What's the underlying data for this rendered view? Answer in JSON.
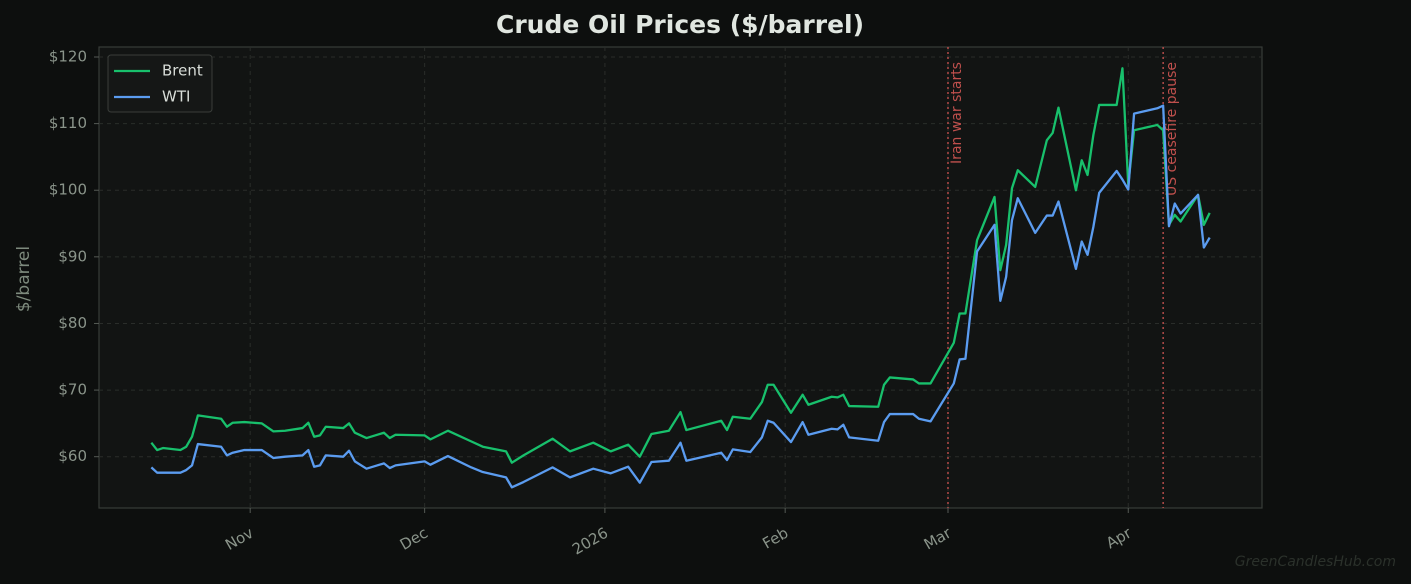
{
  "chart_data": {
    "type": "line",
    "title": "Crude Oil Prices ($/barrel)",
    "y_label": "$/barrel",
    "watermark": "GreenCandlesHub.com",
    "grid": true,
    "legend": "upper left",
    "x": [
      "2025-10-15",
      "2025-10-16",
      "2025-10-17",
      "2025-10-20",
      "2025-10-21",
      "2025-10-22",
      "2025-10-23",
      "2025-10-27",
      "2025-10-28",
      "2025-10-29",
      "2025-10-31",
      "2025-11-03",
      "2025-11-05",
      "2025-11-07",
      "2025-11-10",
      "2025-11-11",
      "2025-11-12",
      "2025-11-13",
      "2025-11-14",
      "2025-11-17",
      "2025-11-18",
      "2025-11-19",
      "2025-11-21",
      "2025-11-24",
      "2025-11-25",
      "2025-11-26",
      "2025-12-01",
      "2025-12-02",
      "2025-12-05",
      "2025-12-09",
      "2025-12-11",
      "2025-12-15",
      "2025-12-16",
      "2025-12-18",
      "2025-12-23",
      "2025-12-26",
      "2025-12-30",
      "2026-01-02",
      "2026-01-05",
      "2026-01-07",
      "2026-01-09",
      "2026-01-12",
      "2026-01-14",
      "2026-01-15",
      "2026-01-21",
      "2026-01-22",
      "2026-01-23",
      "2026-01-26",
      "2026-01-28",
      "2026-01-29",
      "2026-01-30",
      "2026-02-02",
      "2026-02-04",
      "2026-02-05",
      "2026-02-09",
      "2026-02-10",
      "2026-02-11",
      "2026-02-12",
      "2026-02-17",
      "2026-02-18",
      "2026-02-19",
      "2026-02-23",
      "2026-02-24",
      "2026-02-26",
      "2026-03-02",
      "2026-03-03",
      "2026-03-04",
      "2026-03-06",
      "2026-03-09",
      "2026-03-10",
      "2026-03-11",
      "2026-03-12",
      "2026-03-13",
      "2026-03-16",
      "2026-03-18",
      "2026-03-19",
      "2026-03-20",
      "2026-03-23",
      "2026-03-24",
      "2026-03-25",
      "2026-03-26",
      "2026-03-27",
      "2026-03-30",
      "2026-03-31",
      "2026-04-01",
      "2026-04-02",
      "2026-04-06",
      "2026-04-07",
      "2026-04-08",
      "2026-04-09",
      "2026-04-10",
      "2026-04-13",
      "2026-04-14",
      "2026-04-15"
    ],
    "series": [
      {
        "name": "Brent",
        "color": "#18c06c",
        "values": [
          62.1,
          61.0,
          61.3,
          61.0,
          61.5,
          63.0,
          66.2,
          65.7,
          64.5,
          65.1,
          65.2,
          65.0,
          63.8,
          63.9,
          64.3,
          65.1,
          63.0,
          63.2,
          64.5,
          64.3,
          65.0,
          63.6,
          62.8,
          63.6,
          62.8,
          63.3,
          63.2,
          62.6,
          63.9,
          62.3,
          61.5,
          60.8,
          59.1,
          60.2,
          62.7,
          60.8,
          62.1,
          60.8,
          61.8,
          60.0,
          63.4,
          63.9,
          66.7,
          64.0,
          65.4,
          64.0,
          66.0,
          65.7,
          68.2,
          70.8,
          70.8,
          66.6,
          69.3,
          67.8,
          69.0,
          68.9,
          69.3,
          67.6,
          67.5,
          70.8,
          71.9,
          71.6,
          71.0,
          71.0,
          77.1,
          81.5,
          81.5,
          92.5,
          99.0,
          88.0,
          91.8,
          100.3,
          103.0,
          100.5,
          107.5,
          108.6,
          112.4,
          100.0,
          104.5,
          102.3,
          108.3,
          112.8,
          112.8,
          118.3,
          100.8,
          109.0,
          109.8,
          109.0,
          94.8,
          96.3,
          95.3,
          99.3,
          94.8,
          96.6
        ]
      },
      {
        "name": "WTI",
        "color": "#5b9cf0",
        "values": [
          58.4,
          57.6,
          57.6,
          57.6,
          58.0,
          58.7,
          61.9,
          61.5,
          60.2,
          60.6,
          61.0,
          61.0,
          59.8,
          60.0,
          60.2,
          61.0,
          58.5,
          58.7,
          60.2,
          60.0,
          60.9,
          59.3,
          58.2,
          59.0,
          58.3,
          58.7,
          59.3,
          58.8,
          60.1,
          58.4,
          57.7,
          56.9,
          55.4,
          56.2,
          58.4,
          56.9,
          58.2,
          57.5,
          58.5,
          56.1,
          59.2,
          59.4,
          62.1,
          59.4,
          60.6,
          59.5,
          61.1,
          60.7,
          62.9,
          65.4,
          65.1,
          62.2,
          65.2,
          63.3,
          64.2,
          64.1,
          64.8,
          62.9,
          62.4,
          65.2,
          66.4,
          66.4,
          65.7,
          65.3,
          71.0,
          74.6,
          74.7,
          90.8,
          94.8,
          83.4,
          87.0,
          95.5,
          98.8,
          93.6,
          96.2,
          96.2,
          98.3,
          88.2,
          92.3,
          90.3,
          94.5,
          99.6,
          102.9,
          101.6,
          100.1,
          111.5,
          112.3,
          112.7,
          94.6,
          98.0,
          96.5,
          99.3,
          91.4,
          92.9
        ]
      }
    ],
    "xlim": [
      "2025-10-06",
      "2026-04-24"
    ],
    "xticks": [
      {
        "value": "2025-11-01",
        "label": "Nov"
      },
      {
        "value": "2025-12-01",
        "label": "Dec"
      },
      {
        "value": "2026-01-01",
        "label": "2026"
      },
      {
        "value": "2026-02-01",
        "label": "Feb"
      },
      {
        "value": "2026-03-01",
        "label": "Mar"
      },
      {
        "value": "2026-04-01",
        "label": "Apr"
      }
    ],
    "ylim": [
      52.3,
      121.5
    ],
    "yticks": [
      {
        "value": 60,
        "label": "$60"
      },
      {
        "value": 70,
        "label": "$70"
      },
      {
        "value": 80,
        "label": "$80"
      },
      {
        "value": 90,
        "label": "$90"
      },
      {
        "value": 100,
        "label": "$100"
      },
      {
        "value": 110,
        "label": "$110"
      },
      {
        "value": 120,
        "label": "$120"
      }
    ],
    "annotations": [
      {
        "x": "2026-03-01",
        "text": "Iran war starts",
        "color": "#c0504d"
      },
      {
        "x": "2026-04-07",
        "text": "US ceasefire pause",
        "color": "#c0504d"
      }
    ]
  }
}
